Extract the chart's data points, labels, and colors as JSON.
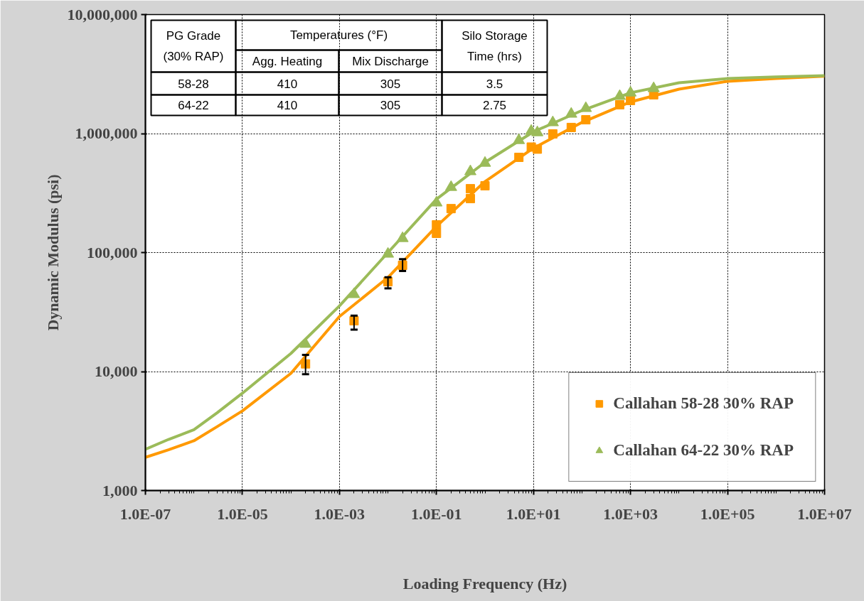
{
  "chart_data": {
    "type": "scatter",
    "xlabel": "Loading Frequency (Hz)",
    "ylabel": "Dynamic Modulus (psi)",
    "log": "xy",
    "xlim": [
      1e-07,
      10000000.0
    ],
    "ylim": [
      1000,
      10000000
    ],
    "xticks": [
      {
        "value": 1e-07,
        "label": "1.0E-07"
      },
      {
        "value": 1e-05,
        "label": "1.0E-05"
      },
      {
        "value": 0.001,
        "label": "1.0E-03"
      },
      {
        "value": 0.1,
        "label": "1.0E-01"
      },
      {
        "value": 10,
        "label": "1.0E+01"
      },
      {
        "value": 1000,
        "label": "1.0E+03"
      },
      {
        "value": 100000,
        "label": "1.0E+05"
      },
      {
        "value": 10000000,
        "label": "1.0E+07"
      }
    ],
    "yticks": [
      {
        "value": 1000,
        "label": "1,000"
      },
      {
        "value": 10000,
        "label": "10,000"
      },
      {
        "value": 100000,
        "label": "100,000"
      },
      {
        "value": 1000000,
        "label": "1,000,000"
      },
      {
        "value": 10000000,
        "label": "10,000,000"
      }
    ],
    "grid": true,
    "legend": "bottom right",
    "annotations": [
      "PG Grade\n(30% RAP)",
      "Temperatures (°F)",
      "Silo Storage\nTime (hrs)",
      "Agg. Heating",
      "Mix Discharge",
      "58-28",
      "410",
      "305",
      "3.5",
      "64-22",
      "410",
      "305",
      "2.75"
    ],
    "series": [
      {
        "type": "line",
        "color": "#ff9900",
        "marker": "none",
        "x": [
          1e-07,
          3e-07,
          1e-06,
          3e-06,
          1e-05,
          0.0001,
          0.001,
          0.01,
          0.1,
          1,
          10,
          100,
          1000,
          10000,
          100000,
          1000000,
          10000000
        ],
        "values": [
          1900,
          2200,
          2620,
          3440,
          4670,
          9660,
          29000,
          61800,
          166000,
          395000,
          755000,
          1240000,
          1845000,
          2360000,
          2750000,
          2900000,
          3030000
        ]
      },
      {
        "type": "line",
        "color": "#9bbb59",
        "marker": "none",
        "x": [
          1e-07,
          3e-07,
          1e-06,
          3e-06,
          1e-05,
          0.0001,
          0.001,
          0.01,
          0.1,
          1,
          10,
          100,
          1000,
          10000,
          100000,
          1000000,
          10000000
        ],
        "values": [
          2220,
          2690,
          3240,
          4500,
          6580,
          14200,
          35600,
          100000,
          281000,
          573000,
          1035000,
          1563000,
          2200000,
          2670000,
          2900000,
          2990000,
          3070000
        ]
      },
      {
        "name": "Callahan 58-28 30% RAP",
        "color": "#ff9900",
        "marker": "square",
        "x": [
          0.0002,
          0.002,
          0.01,
          0.02,
          0.1,
          0.1,
          0.2,
          0.5,
          0.5,
          1,
          5,
          9,
          12,
          25,
          60,
          120,
          600,
          1000,
          3000
        ],
        "values": [
          11600,
          26700,
          56900,
          78100,
          171000,
          145000,
          234000,
          344000,
          284000,
          364000,
          631000,
          770000,
          740000,
          993000,
          1125000,
          1306000,
          1746000,
          1897000,
          2115000
        ],
        "errors": [
          [
            9500,
            13800
          ],
          [
            22500,
            29500
          ],
          [
            50000,
            62000
          ],
          [
            70000,
            88000
          ],
          null,
          null,
          null,
          null,
          null,
          null,
          null,
          null,
          null,
          null,
          null,
          null,
          null,
          null,
          null
        ]
      },
      {
        "name": "Callahan 64-22 30% RAP",
        "color": "#9bbb59",
        "marker": "triangle",
        "x": [
          0.0002,
          0.002,
          0.01,
          0.02,
          0.1,
          0.2,
          0.5,
          1,
          5,
          9,
          12,
          25,
          60,
          120,
          600,
          1000,
          3000
        ],
        "values": [
          17000,
          44500,
          97300,
          131600,
          262000,
          354000,
          480000,
          565000,
          877000,
          1050000,
          1020000,
          1238000,
          1460000,
          1630000,
          2060000,
          2200000,
          2395000
        ]
      }
    ]
  }
}
